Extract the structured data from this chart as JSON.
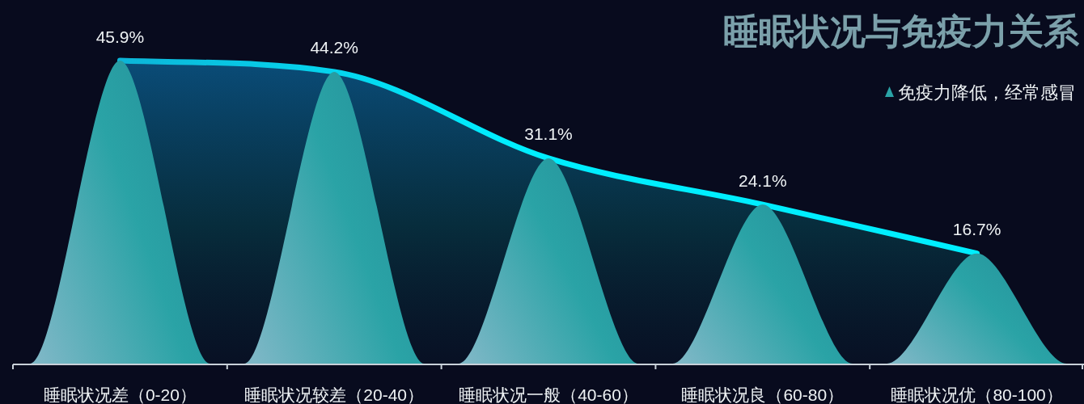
{
  "chart_data": {
    "type": "bar",
    "title": "睡眠状况与免疫力关系",
    "categories": [
      "睡眠状况差（0-20）",
      "睡眠状况较差（20-40）",
      "睡眠状况一般（40-60）",
      "睡眠状况良（60-80）",
      "睡眠状况优（80-100）"
    ],
    "series": [
      {
        "name": "免疫力降低，经常感冒",
        "color": "#2aa3a6",
        "values": [
          45.9,
          44.2,
          31.1,
          24.1,
          16.7
        ],
        "value_labels": [
          "45.9%",
          "44.2%",
          "31.1%",
          "24.1%",
          "16.7%"
        ]
      },
      {
        "type": "area",
        "color": "#00eeff",
        "values": [
          45.9,
          44.2,
          31.1,
          24.1,
          16.7
        ]
      }
    ],
    "legend": "top right"
  }
}
